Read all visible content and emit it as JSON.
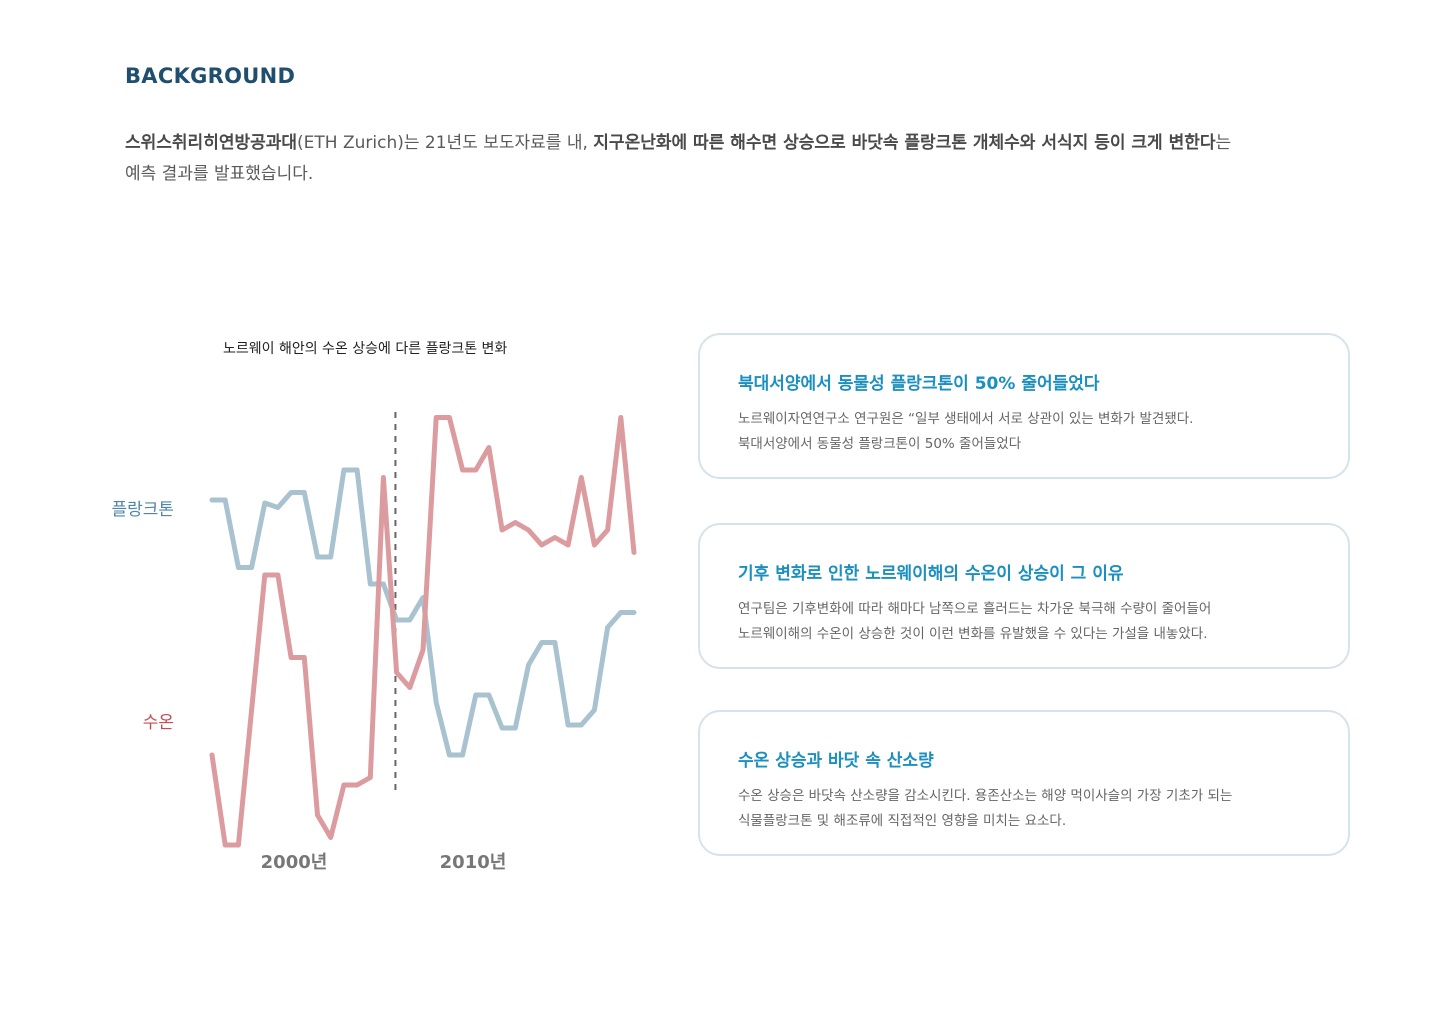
{
  "section_title": "BACKGROUND",
  "intro": {
    "p1": "스위스취리히연방공과대",
    "p2": "(ETH Zurich)는 21년도 보도자료를 내, ",
    "p3": "지구온난화에 따른 해수면 상승으로 바닷속 플랑크톤 개체수와 서식지 등이 크게 변한다",
    "p4": "는 예측 결과를 발표했습니다."
  },
  "chart_data": {
    "type": "line",
    "title": "노르웨이 해안의 수온 상승에 다른 플랑크톤 변화",
    "x_tick_labels": [
      "2000년",
      "2010년"
    ],
    "series": [
      {
        "name": "플랑크톤",
        "color": "#a9c2cf",
        "values": [
          0.8,
          0.8,
          0.35,
          0.35,
          0.78,
          0.75,
          0.85,
          0.85,
          0.42,
          0.42,
          1.0,
          1.0,
          0.24,
          0.24,
          0.0,
          0.0,
          0.15,
          -0.55,
          -0.9,
          -0.9,
          -0.5,
          -0.5,
          -0.72,
          -0.72,
          -0.3,
          -0.15,
          -0.15,
          -0.7,
          -0.7,
          -0.6,
          -0.05,
          0.05,
          0.05
        ]
      },
      {
        "name": "수온",
        "color": "#dc9b9f",
        "values": [
          -0.9,
          -1.5,
          -1.5,
          -0.6,
          0.3,
          0.3,
          -0.25,
          -0.25,
          -1.3,
          -1.45,
          -1.1,
          -1.1,
          -1.05,
          0.95,
          -0.35,
          -0.45,
          -0.2,
          1.35,
          1.35,
          1.0,
          1.0,
          1.15,
          0.6,
          0.65,
          0.6,
          0.5,
          0.55,
          0.5,
          0.95,
          0.5,
          0.6,
          1.35,
          0.45
        ]
      }
    ],
    "vline_index": 13
  },
  "cards": [
    {
      "title": "북대서양에서 동물성 플랑크톤이 50% 줄어들었다",
      "line1": "노르웨이자연연구소 연구원은 “일부 생태에서 서로 상관이 있는 변화가 발견됐다.",
      "line2": "북대서양에서 동물성 플랑크톤이 50% 줄어들었다"
    },
    {
      "title": "기후 변화로 인한 노르웨이해의 수온이 상승이 그 이유",
      "line1": "연구팀은 기후변화에 따라 해마다 남쪽으로 흘러드는 차가운 북극해 수량이 줄어들어",
      "line2": "노르웨이해의 수온이 상승한 것이 이런 변화를 유발했을 수 있다는 가설을 내놓았다."
    },
    {
      "title": "수온 상승과 바닷 속 산소량",
      "line1": "수온 상승은 바닷속 산소량을 감소시킨다. 용존산소는 해양 먹이사슬의 가장 기초가 되는",
      "line2": "식물플랑크톤 및 해조류에 직접적인 영향을 미치는 요소다."
    }
  ]
}
